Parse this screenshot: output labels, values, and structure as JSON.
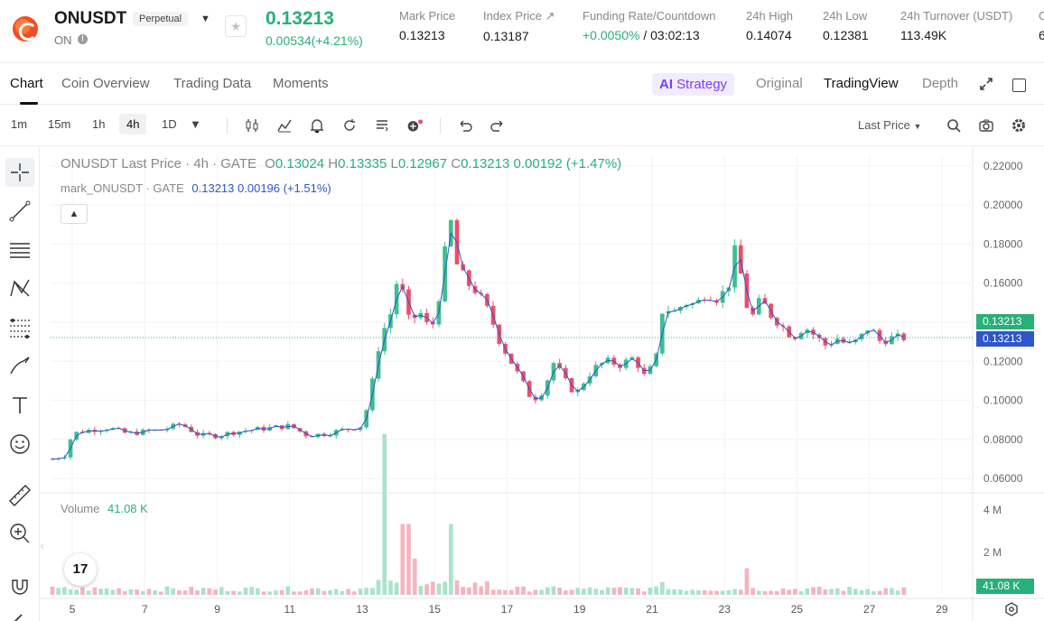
{
  "header": {
    "symbol": "ONUSDT",
    "contract_type": "Perpetual",
    "status": "ON",
    "last_price": "0.13213",
    "change": "0.00534(+4.21%)",
    "stats": [
      {
        "label": "Mark Price",
        "value": "0.13213"
      },
      {
        "label": "Index Price ↗",
        "value": "0.13187"
      },
      {
        "label": "Funding Rate/Countdown",
        "value_green": "+0.0050%",
        "value": " / 03:02:13"
      },
      {
        "label": "24h High",
        "value": "0.14074"
      },
      {
        "label": "24h Low",
        "value": "0.12381"
      },
      {
        "label": "24h Turnover (USDT)",
        "value": "113.49K"
      }
    ],
    "cut_label": "C",
    "cut_value": "6"
  },
  "tabs": {
    "items": [
      "Chart",
      "Coin Overview",
      "Trading Data",
      "Moments"
    ],
    "strategy": "Strategy",
    "strategy_icon": "AI",
    "right": [
      "Original",
      "TradingView",
      "Depth"
    ]
  },
  "toolbar": {
    "intervals": [
      "1m",
      "15m",
      "1h",
      "4h",
      "1D"
    ],
    "active_interval": "4h",
    "price_type": "Last Price"
  },
  "chart": {
    "legend_title": "ONUSDT Last Price · 4h · GATE",
    "ohlc": {
      "o_label": "O",
      "o": "0.13024",
      "h_label": "H",
      "h": "0.13335",
      "l_label": "L",
      "l": "0.12967",
      "c_label": "C",
      "c": "0.13213",
      "chg": "0.00192 (+1.47%)"
    },
    "mark_series": "mark_ONUSDT · GATE",
    "mark_value": "0.13213",
    "mark_chg": "0.00196 (+1.51%)",
    "volume_label": "Volume",
    "volume_value": "41.08 K",
    "tv_logo": "17",
    "last_price_tag": "0.13213",
    "mark_price_tag": "0.13213",
    "volume_tag": "41.08 K",
    "colors": {
      "up": "#3dbf8f",
      "down": "#ec4f6b",
      "mark_line": "#2c56c9",
      "tag_green": "#27b079",
      "tag_blue": "#2c56c9"
    }
  },
  "chart_data": {
    "type": "candlestick",
    "y_ticks": [
      "0.22000",
      "0.20000",
      "0.18000",
      "0.16000",
      "0.14000",
      "0.12000",
      "0.10000",
      "0.08000",
      "0.06000"
    ],
    "ylim": [
      0.055,
      0.225
    ],
    "volume_ticks": [
      "4 M",
      "2 M"
    ],
    "volume_ylim": [
      0,
      4500000
    ],
    "x_ticks": [
      "5",
      "7",
      "9",
      "11",
      "13",
      "15",
      "17",
      "19",
      "21",
      "23",
      "25",
      "27",
      "29"
    ],
    "x_tick_days": [
      5,
      7,
      9,
      11,
      13,
      15,
      17,
      19,
      21,
      23,
      25,
      27,
      29
    ],
    "xlim_days": [
      4.4,
      29.8
    ],
    "close_path": [
      [
        4.45,
        0.07
      ],
      [
        4.8,
        0.072
      ],
      [
        5.0,
        0.083
      ],
      [
        5.5,
        0.085
      ],
      [
        6.0,
        0.086
      ],
      [
        6.5,
        0.083
      ],
      [
        7.0,
        0.084
      ],
      [
        7.5,
        0.085
      ],
      [
        8.0,
        0.088
      ],
      [
        8.5,
        0.082
      ],
      [
        9.0,
        0.082
      ],
      [
        9.5,
        0.084
      ],
      [
        10.0,
        0.085
      ],
      [
        10.5,
        0.086
      ],
      [
        11.0,
        0.087
      ],
      [
        11.5,
        0.082
      ],
      [
        12.0,
        0.083
      ],
      [
        12.5,
        0.085
      ],
      [
        13.0,
        0.087
      ],
      [
        13.2,
        0.101
      ],
      [
        13.5,
        0.132
      ],
      [
        13.8,
        0.145
      ],
      [
        14.0,
        0.165
      ],
      [
        14.3,
        0.14
      ],
      [
        14.6,
        0.145
      ],
      [
        14.9,
        0.135
      ],
      [
        15.2,
        0.16
      ],
      [
        15.4,
        0.198
      ],
      [
        15.6,
        0.17
      ],
      [
        15.9,
        0.16
      ],
      [
        16.2,
        0.155
      ],
      [
        16.5,
        0.145
      ],
      [
        16.8,
        0.13
      ],
      [
        17.1,
        0.12
      ],
      [
        17.4,
        0.11
      ],
      [
        17.7,
        0.1
      ],
      [
        18.0,
        0.105
      ],
      [
        18.3,
        0.12
      ],
      [
        18.6,
        0.11
      ],
      [
        18.9,
        0.103
      ],
      [
        19.2,
        0.112
      ],
      [
        19.5,
        0.118
      ],
      [
        19.8,
        0.12
      ],
      [
        20.1,
        0.118
      ],
      [
        20.5,
        0.122
      ],
      [
        20.8,
        0.112
      ],
      [
        21.1,
        0.12
      ],
      [
        21.3,
        0.148
      ],
      [
        21.6,
        0.145
      ],
      [
        21.9,
        0.15
      ],
      [
        22.2,
        0.149
      ],
      [
        22.5,
        0.155
      ],
      [
        22.8,
        0.152
      ],
      [
        23.1,
        0.158
      ],
      [
        23.3,
        0.178
      ],
      [
        23.5,
        0.16
      ],
      [
        23.7,
        0.14
      ],
      [
        24.0,
        0.152
      ],
      [
        24.3,
        0.143
      ],
      [
        24.6,
        0.138
      ],
      [
        24.9,
        0.132
      ],
      [
        25.2,
        0.138
      ],
      [
        25.5,
        0.133
      ],
      [
        25.8,
        0.128
      ],
      [
        26.1,
        0.132
      ],
      [
        26.4,
        0.128
      ],
      [
        26.7,
        0.131
      ],
      [
        27.0,
        0.138
      ],
      [
        27.3,
        0.13
      ],
      [
        27.6,
        0.132
      ],
      [
        28.0,
        0.1321
      ]
    ],
    "volume_spikes": [
      [
        13.65,
        4200000
      ],
      [
        14.2,
        1850000
      ],
      [
        14.5,
        950000
      ],
      [
        15.5,
        1850000
      ],
      [
        23.6,
        1250000
      ],
      [
        21.3,
        600000
      ]
    ]
  }
}
